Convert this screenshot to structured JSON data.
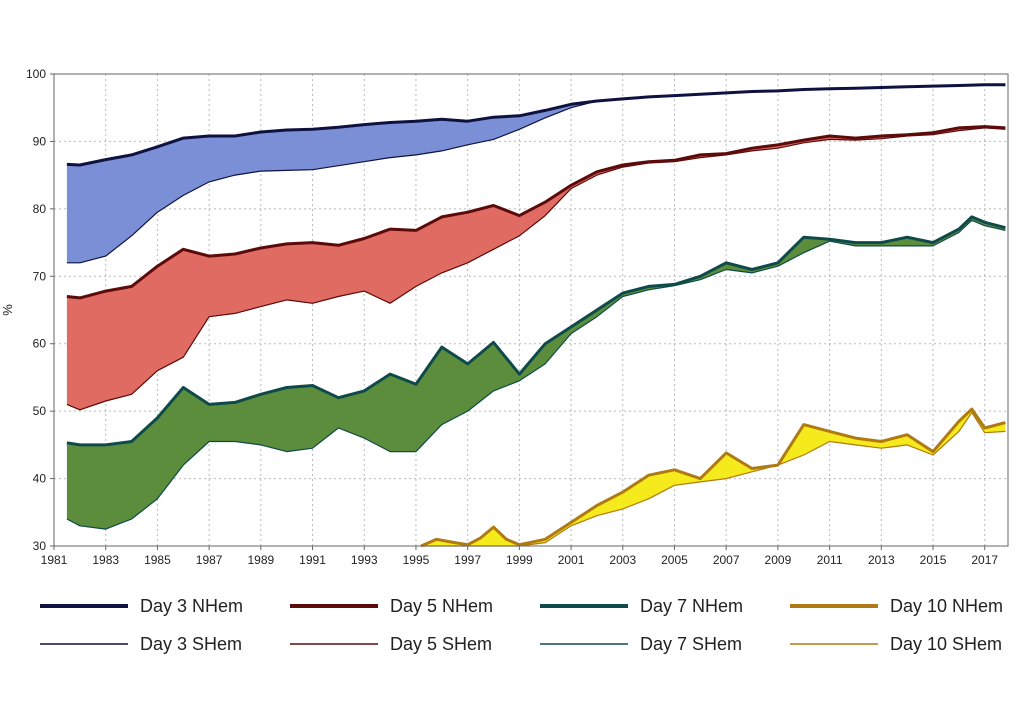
{
  "chart_data": {
    "type": "area",
    "title": "",
    "xlabel": "",
    "ylabel": "%",
    "xlim": [
      1981,
      2017.9
    ],
    "ylim": [
      30,
      100
    ],
    "x_ticks": [
      "1981",
      "1983",
      "1985",
      "1987",
      "1989",
      "1991",
      "1993",
      "1995",
      "1997",
      "1999",
      "2001",
      "2003",
      "2005",
      "2007",
      "2009",
      "2011",
      "2013",
      "2015",
      "2017"
    ],
    "y_ticks": [
      "30",
      "40",
      "50",
      "60",
      "70",
      "80",
      "90",
      "100"
    ],
    "grid": true,
    "legend_position": "bottom",
    "bands": [
      {
        "day": "Day 3",
        "fill": "#7b8fd6",
        "line_color": "#0f1240",
        "nhem_label": "Day 3 NHem",
        "shem_label": "Day 3 SHem",
        "nhem": [
          [
            1981.5,
            86.6
          ],
          [
            1982,
            86.5
          ],
          [
            1983,
            87.3
          ],
          [
            1984,
            88
          ],
          [
            1985,
            89.2
          ],
          [
            1986,
            90.5
          ],
          [
            1987,
            90.8
          ],
          [
            1988,
            90.8
          ],
          [
            1989,
            91.4
          ],
          [
            1990,
            91.7
          ],
          [
            1991,
            91.8
          ],
          [
            1992,
            92.1
          ],
          [
            1993,
            92.5
          ],
          [
            1994,
            92.8
          ],
          [
            1995,
            93
          ],
          [
            1996,
            93.3
          ],
          [
            1997,
            93
          ],
          [
            1998,
            93.6
          ],
          [
            1999,
            93.8
          ],
          [
            2000,
            94.6
          ],
          [
            2001,
            95.5
          ],
          [
            2002,
            96
          ],
          [
            2003,
            96.3
          ],
          [
            2004,
            96.6
          ],
          [
            2005,
            96.8
          ],
          [
            2006,
            97
          ],
          [
            2007,
            97.2
          ],
          [
            2008,
            97.4
          ],
          [
            2009,
            97.5
          ],
          [
            2010,
            97.7
          ],
          [
            2011,
            97.8
          ],
          [
            2012,
            97.9
          ],
          [
            2013,
            98
          ],
          [
            2014,
            98.1
          ],
          [
            2015,
            98.2
          ],
          [
            2016,
            98.3
          ],
          [
            2017,
            98.4
          ],
          [
            2017.8,
            98.4
          ]
        ],
        "shem": [
          [
            1981.5,
            72
          ],
          [
            1982,
            72
          ],
          [
            1983,
            73
          ],
          [
            1984,
            76
          ],
          [
            1985,
            79.5
          ],
          [
            1986,
            82
          ],
          [
            1987,
            84
          ],
          [
            1988,
            85
          ],
          [
            1989,
            85.6
          ],
          [
            1990,
            85.7
          ],
          [
            1991,
            85.8
          ],
          [
            1992,
            86.4
          ],
          [
            1993,
            87
          ],
          [
            1994,
            87.6
          ],
          [
            1995,
            88
          ],
          [
            1996,
            88.6
          ],
          [
            1997,
            89.5
          ],
          [
            1998,
            90.3
          ],
          [
            1999,
            91.8
          ],
          [
            2000,
            93.5
          ],
          [
            2001,
            95
          ],
          [
            2002,
            96
          ],
          [
            2003,
            96.3
          ],
          [
            2004,
            96.6
          ],
          [
            2005,
            96.8
          ],
          [
            2006,
            97
          ],
          [
            2007,
            97.2
          ],
          [
            2008,
            97.4
          ],
          [
            2009,
            97.5
          ],
          [
            2010,
            97.7
          ],
          [
            2011,
            97.8
          ],
          [
            2012,
            97.9
          ],
          [
            2013,
            98
          ],
          [
            2014,
            98.1
          ],
          [
            2015,
            98.2
          ],
          [
            2016,
            98.3
          ],
          [
            2017,
            98.4
          ],
          [
            2017.8,
            98.3
          ]
        ]
      },
      {
        "day": "Day 5",
        "fill": "#e06b62",
        "line_color": "#5c0a0a",
        "nhem_label": "Day 5 NHem",
        "shem_label": "Day 5 SHem",
        "nhem": [
          [
            1981.5,
            67
          ],
          [
            1982,
            66.8
          ],
          [
            1983,
            67.8
          ],
          [
            1984,
            68.5
          ],
          [
            1985,
            71.5
          ],
          [
            1986,
            74
          ],
          [
            1987,
            73
          ],
          [
            1988,
            73.3
          ],
          [
            1989,
            74.2
          ],
          [
            1990,
            74.8
          ],
          [
            1991,
            75
          ],
          [
            1992,
            74.6
          ],
          [
            1993,
            75.6
          ],
          [
            1994,
            77
          ],
          [
            1995,
            76.8
          ],
          [
            1996,
            78.8
          ],
          [
            1997,
            79.5
          ],
          [
            1998,
            80.5
          ],
          [
            1999,
            79
          ],
          [
            2000,
            81
          ],
          [
            2001,
            83.5
          ],
          [
            2002,
            85.5
          ],
          [
            2003,
            86.5
          ],
          [
            2004,
            87
          ],
          [
            2005,
            87.2
          ],
          [
            2006,
            88
          ],
          [
            2007,
            88.2
          ],
          [
            2008,
            89
          ],
          [
            2009,
            89.5
          ],
          [
            2010,
            90.2
          ],
          [
            2011,
            90.8
          ],
          [
            2012,
            90.5
          ],
          [
            2013,
            90.8
          ],
          [
            2014,
            91
          ],
          [
            2015,
            91.3
          ],
          [
            2016,
            92
          ],
          [
            2017,
            92.2
          ],
          [
            2017.8,
            92
          ]
        ],
        "shem": [
          [
            1981.5,
            51
          ],
          [
            1982,
            50.2
          ],
          [
            1983,
            51.5
          ],
          [
            1984,
            52.5
          ],
          [
            1985,
            56
          ],
          [
            1986,
            58
          ],
          [
            1987,
            64
          ],
          [
            1988,
            64.5
          ],
          [
            1989,
            65.5
          ],
          [
            1990,
            66.5
          ],
          [
            1991,
            66
          ],
          [
            1992,
            67
          ],
          [
            1993,
            67.8
          ],
          [
            1994,
            66
          ],
          [
            1995,
            68.5
          ],
          [
            1996,
            70.5
          ],
          [
            1997,
            72
          ],
          [
            1998,
            74
          ],
          [
            1999,
            76
          ],
          [
            2000,
            79
          ],
          [
            2001,
            83
          ],
          [
            2002,
            85
          ],
          [
            2003,
            86.2
          ],
          [
            2004,
            86.8
          ],
          [
            2005,
            87
          ],
          [
            2006,
            87.6
          ],
          [
            2007,
            88
          ],
          [
            2008,
            88.6
          ],
          [
            2009,
            89
          ],
          [
            2010,
            89.8
          ],
          [
            2011,
            90.3
          ],
          [
            2012,
            90.2
          ],
          [
            2013,
            90.4
          ],
          [
            2014,
            90.8
          ],
          [
            2015,
            91
          ],
          [
            2016,
            91.6
          ],
          [
            2017,
            92
          ],
          [
            2017.8,
            91.8
          ]
        ]
      },
      {
        "day": "Day 7",
        "fill": "#5c8d3c",
        "line_color": "#0f4a4a",
        "nhem_label": "Day 7 NHem",
        "shem_label": "Day 7 SHem",
        "nhem": [
          [
            1981.5,
            45.3
          ],
          [
            1982,
            45
          ],
          [
            1983,
            45
          ],
          [
            1984,
            45.5
          ],
          [
            1985,
            49
          ],
          [
            1986,
            53.5
          ],
          [
            1987,
            51
          ],
          [
            1988,
            51.3
          ],
          [
            1989,
            52.5
          ],
          [
            1990,
            53.5
          ],
          [
            1991,
            53.8
          ],
          [
            1992,
            52
          ],
          [
            1993,
            53
          ],
          [
            1994,
            55.5
          ],
          [
            1995,
            54
          ],
          [
            1996,
            59.5
          ],
          [
            1997,
            57
          ],
          [
            1998,
            60.2
          ],
          [
            1999,
            55.5
          ],
          [
            2000,
            60
          ],
          [
            2001,
            62.5
          ],
          [
            2002,
            65
          ],
          [
            2003,
            67.5
          ],
          [
            2004,
            68.5
          ],
          [
            2005,
            68.8
          ],
          [
            2006,
            70
          ],
          [
            2007,
            72
          ],
          [
            2008,
            71
          ],
          [
            2009,
            72
          ],
          [
            2010,
            75.8
          ],
          [
            2011,
            75.5
          ],
          [
            2012,
            75
          ],
          [
            2013,
            75
          ],
          [
            2014,
            75.8
          ],
          [
            2015,
            75
          ],
          [
            2016,
            77
          ],
          [
            2016.5,
            78.8
          ],
          [
            2017,
            78
          ],
          [
            2017.8,
            77.2
          ]
        ],
        "shem": [
          [
            1981.5,
            34
          ],
          [
            1982,
            33
          ],
          [
            1983,
            32.5
          ],
          [
            1984,
            34
          ],
          [
            1985,
            37
          ],
          [
            1986,
            42
          ],
          [
            1987,
            45.5
          ],
          [
            1988,
            45.5
          ],
          [
            1989,
            45
          ],
          [
            1990,
            44
          ],
          [
            1991,
            44.5
          ],
          [
            1992,
            47.5
          ],
          [
            1993,
            46
          ],
          [
            1994,
            44
          ],
          [
            1995,
            44
          ],
          [
            1996,
            48
          ],
          [
            1997,
            50
          ],
          [
            1998,
            53
          ],
          [
            1999,
            54.5
          ],
          [
            2000,
            57
          ],
          [
            2001,
            61.5
          ],
          [
            2002,
            64
          ],
          [
            2003,
            67
          ],
          [
            2004,
            68
          ],
          [
            2005,
            68.6
          ],
          [
            2006,
            69.5
          ],
          [
            2007,
            71
          ],
          [
            2008,
            70.5
          ],
          [
            2009,
            71.5
          ],
          [
            2010,
            73.5
          ],
          [
            2011,
            75.2
          ],
          [
            2012,
            74.5
          ],
          [
            2013,
            74.5
          ],
          [
            2014,
            74.5
          ],
          [
            2015,
            74.5
          ],
          [
            2016,
            76.5
          ],
          [
            2016.5,
            78.3
          ],
          [
            2017,
            77.5
          ],
          [
            2017.8,
            76.8
          ]
        ]
      },
      {
        "day": "Day 10",
        "fill": "#f5ea1b",
        "line_color": "#b07a12",
        "nhem_label": "Day 10 NHem",
        "shem_label": "Day 10 SHem",
        "nhem": [
          [
            1995.2,
            30
          ],
          [
            1995.8,
            31
          ],
          [
            1996.5,
            30.5
          ],
          [
            1997,
            30.2
          ],
          [
            1997.5,
            31.2
          ],
          [
            1998,
            32.8
          ],
          [
            1998.5,
            31
          ],
          [
            1999,
            30.2
          ],
          [
            2000,
            31
          ],
          [
            2001,
            33.5
          ],
          [
            2002,
            36
          ],
          [
            2003,
            38
          ],
          [
            2004,
            40.5
          ],
          [
            2005,
            41.3
          ],
          [
            2006,
            40
          ],
          [
            2007,
            43.8
          ],
          [
            2008,
            41.5
          ],
          [
            2009,
            42
          ],
          [
            2010,
            48
          ],
          [
            2011,
            47
          ],
          [
            2012,
            46
          ],
          [
            2013,
            45.5
          ],
          [
            2014,
            46.5
          ],
          [
            2015,
            44
          ],
          [
            2016,
            48.5
          ],
          [
            2016.5,
            50.3
          ],
          [
            2017,
            47.5
          ],
          [
            2017.8,
            48.3
          ]
        ],
        "shem": [
          [
            1995.2,
            30
          ],
          [
            1995.8,
            30
          ],
          [
            1996.5,
            30
          ],
          [
            1997,
            30
          ],
          [
            1997.5,
            30
          ],
          [
            1998,
            30
          ],
          [
            1998.5,
            30
          ],
          [
            1999,
            30
          ],
          [
            2000,
            30.5
          ],
          [
            2001,
            33
          ],
          [
            2002,
            34.5
          ],
          [
            2003,
            35.5
          ],
          [
            2004,
            37
          ],
          [
            2005,
            39
          ],
          [
            2006,
            39.5
          ],
          [
            2007,
            40
          ],
          [
            2008,
            41
          ],
          [
            2009,
            42
          ],
          [
            2010,
            43.5
          ],
          [
            2011,
            45.5
          ],
          [
            2012,
            45
          ],
          [
            2013,
            44.5
          ],
          [
            2014,
            45
          ],
          [
            2015,
            43.5
          ],
          [
            2016,
            47
          ],
          [
            2016.5,
            49.8
          ],
          [
            2017,
            46.8
          ],
          [
            2017.8,
            47
          ]
        ]
      }
    ]
  }
}
